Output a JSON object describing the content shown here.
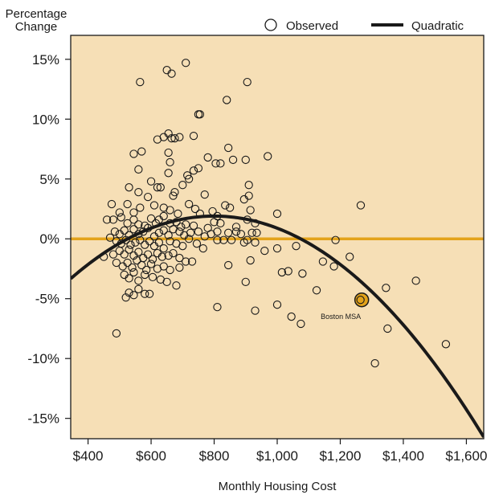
{
  "chart_data": {
    "type": "scatter",
    "title": "",
    "xlabel": "Monthly Housing Cost",
    "ylabel_line1": "Percentage",
    "ylabel_line2": "Change",
    "xlim": [
      345,
      1655
    ],
    "ylim": [
      -16.7,
      17
    ],
    "x_ticks": [
      400,
      600,
      800,
      1000,
      1200,
      1400,
      1600
    ],
    "x_tick_labels": [
      "$400",
      "$600",
      "$800",
      "$1,000",
      "$1,200",
      "$1,400",
      "$1,600"
    ],
    "y_ticks": [
      15,
      10,
      5,
      0,
      -5,
      -10,
      -15
    ],
    "y_tick_labels": [
      "15%",
      "10%",
      "5%",
      "0%",
      "-5%",
      "-10%",
      "-15%"
    ],
    "grid": false,
    "legend_position": "top-right",
    "legend": [
      {
        "label": "Observed",
        "symbol": "open-circle"
      },
      {
        "label": "Quadratic",
        "symbol": "thick-line"
      }
    ],
    "colors": {
      "plot_background": "#f6dfb6",
      "zero_line": "#e3a31b",
      "fit_line": "#1a1a1a",
      "highlight": "#e3a31b"
    },
    "zero_line_y": 0,
    "quadratic_fit": {
      "vertex_x": 800,
      "vertex_y": 1.9,
      "a": -2.525e-05
    },
    "annotation": {
      "text": "Boston MSA",
      "x": 1268,
      "y": -5.1
    },
    "highlight_point": {
      "x": 1268,
      "y": -5.1
    },
    "series": [
      {
        "name": "Observed",
        "points": [
          [
            565,
            13.1
          ],
          [
            650,
            14.1
          ],
          [
            665,
            13.8
          ],
          [
            710,
            14.7
          ],
          [
            905,
            13.1
          ],
          [
            840,
            11.6
          ],
          [
            755,
            10.4
          ],
          [
            750,
            10.4
          ],
          [
            655,
            8.8
          ],
          [
            665,
            8.4
          ],
          [
            675,
            8.4
          ],
          [
            690,
            8.5
          ],
          [
            620,
            8.3
          ],
          [
            640,
            8.5
          ],
          [
            735,
            8.6
          ],
          [
            545,
            7.1
          ],
          [
            570,
            7.3
          ],
          [
            655,
            7.2
          ],
          [
            845,
            7.6
          ],
          [
            780,
            6.8
          ],
          [
            860,
            6.6
          ],
          [
            900,
            6.6
          ],
          [
            970,
            6.9
          ],
          [
            660,
            6.4
          ],
          [
            805,
            6.3
          ],
          [
            820,
            6.3
          ],
          [
            560,
            5.8
          ],
          [
            655,
            5.5
          ],
          [
            715,
            5.3
          ],
          [
            735,
            5.7
          ],
          [
            750,
            5.9
          ],
          [
            720,
            5.0
          ],
          [
            530,
            4.3
          ],
          [
            600,
            4.8
          ],
          [
            620,
            4.3
          ],
          [
            630,
            4.3
          ],
          [
            675,
            3.9
          ],
          [
            700,
            4.5
          ],
          [
            910,
            4.5
          ],
          [
            560,
            3.9
          ],
          [
            590,
            3.5
          ],
          [
            670,
            3.6
          ],
          [
            770,
            3.7
          ],
          [
            850,
            2.6
          ],
          [
            895,
            3.3
          ],
          [
            910,
            3.6
          ],
          [
            1265,
            2.8
          ],
          [
            475,
            2.9
          ],
          [
            500,
            2.2
          ],
          [
            525,
            2.9
          ],
          [
            545,
            2.2
          ],
          [
            565,
            2.6
          ],
          [
            610,
            2.8
          ],
          [
            640,
            2.6
          ],
          [
            660,
            2.4
          ],
          [
            685,
            2.1
          ],
          [
            720,
            2.9
          ],
          [
            740,
            2.5
          ],
          [
            755,
            2.1
          ],
          [
            795,
            2.3
          ],
          [
            810,
            1.9
          ],
          [
            835,
            2.8
          ],
          [
            915,
            2.4
          ],
          [
            1000,
            2.1
          ],
          [
            460,
            1.6
          ],
          [
            480,
            1.6
          ],
          [
            505,
            1.8
          ],
          [
            525,
            1.3
          ],
          [
            545,
            1.6
          ],
          [
            560,
            1.2
          ],
          [
            580,
            1.1
          ],
          [
            600,
            1.7
          ],
          [
            615,
            1.3
          ],
          [
            625,
            1.6
          ],
          [
            640,
            1.9
          ],
          [
            660,
            1.3
          ],
          [
            680,
            1.4
          ],
          [
            695,
            1.0
          ],
          [
            710,
            1.2
          ],
          [
            735,
            1.1
          ],
          [
            780,
            0.9
          ],
          [
            800,
            1.4
          ],
          [
            820,
            1.3
          ],
          [
            870,
            1.0
          ],
          [
            905,
            1.6
          ],
          [
            930,
            1.3
          ],
          [
            485,
            0.6
          ],
          [
            500,
            0.4
          ],
          [
            515,
            0.7
          ],
          [
            530,
            0.3
          ],
          [
            545,
            0.8
          ],
          [
            560,
            0.4
          ],
          [
            575,
            0.6
          ],
          [
            590,
            0.9
          ],
          [
            610,
            0.2
          ],
          [
            625,
            0.5
          ],
          [
            640,
            0.7
          ],
          [
            655,
            0.3
          ],
          [
            670,
            0.8
          ],
          [
            690,
            0.6
          ],
          [
            705,
            0.3
          ],
          [
            725,
            0.5
          ],
          [
            750,
            0.6
          ],
          [
            770,
            0.2
          ],
          [
            790,
            0.4
          ],
          [
            810,
            0.6
          ],
          [
            845,
            0.5
          ],
          [
            870,
            0.6
          ],
          [
            885,
            0.4
          ],
          [
            920,
            0.5
          ],
          [
            935,
            0.5
          ],
          [
            470,
            0.1
          ],
          [
            490,
            -0.2
          ],
          [
            505,
            -0.4
          ],
          [
            520,
            -0.1
          ],
          [
            535,
            -0.5
          ],
          [
            550,
            -0.3
          ],
          [
            565,
            -0.1
          ],
          [
            580,
            -0.5
          ],
          [
            595,
            -0.2
          ],
          [
            610,
            -0.6
          ],
          [
            625,
            -0.3
          ],
          [
            640,
            -0.8
          ],
          [
            660,
            -0.2
          ],
          [
            680,
            -0.4
          ],
          [
            700,
            -0.6
          ],
          [
            720,
            0.0
          ],
          [
            745,
            -0.4
          ],
          [
            765,
            -0.8
          ],
          [
            810,
            -0.1
          ],
          [
            830,
            -0.1
          ],
          [
            855,
            -0.1
          ],
          [
            895,
            -0.3
          ],
          [
            905,
            -0.1
          ],
          [
            930,
            -0.3
          ],
          [
            960,
            -1.0
          ],
          [
            1000,
            -0.8
          ],
          [
            1060,
            -0.6
          ],
          [
            1185,
            -0.1
          ],
          [
            450,
            -1.5
          ],
          [
            480,
            -1.3
          ],
          [
            500,
            -1.0
          ],
          [
            515,
            -1.3
          ],
          [
            530,
            -0.9
          ],
          [
            545,
            -1.4
          ],
          [
            560,
            -1.1
          ],
          [
            575,
            -1.6
          ],
          [
            590,
            -1.3
          ],
          [
            605,
            -1.7
          ],
          [
            620,
            -1.2
          ],
          [
            635,
            -1.5
          ],
          [
            655,
            -1.4
          ],
          [
            670,
            -1.2
          ],
          [
            690,
            -1.6
          ],
          [
            710,
            -1.9
          ],
          [
            490,
            -2.0
          ],
          [
            510,
            -2.3
          ],
          [
            525,
            -2.0
          ],
          [
            540,
            -2.4
          ],
          [
            555,
            -1.8
          ],
          [
            570,
            -2.2
          ],
          [
            585,
            -2.6
          ],
          [
            600,
            -2.1
          ],
          [
            620,
            -2.5
          ],
          [
            640,
            -2.3
          ],
          [
            660,
            -2.6
          ],
          [
            690,
            -2.4
          ],
          [
            730,
            -1.9
          ],
          [
            845,
            -2.2
          ],
          [
            915,
            -1.8
          ],
          [
            1145,
            -1.9
          ],
          [
            1180,
            -2.3
          ],
          [
            1230,
            -1.5
          ],
          [
            515,
            -3.0
          ],
          [
            530,
            -3.3
          ],
          [
            545,
            -2.8
          ],
          [
            560,
            -3.5
          ],
          [
            580,
            -3.0
          ],
          [
            605,
            -3.2
          ],
          [
            630,
            -3.4
          ],
          [
            650,
            -3.6
          ],
          [
            680,
            -3.9
          ],
          [
            900,
            -3.6
          ],
          [
            1015,
            -2.8
          ],
          [
            1035,
            -2.7
          ],
          [
            1080,
            -2.9
          ],
          [
            1345,
            -4.1
          ],
          [
            1440,
            -3.5
          ],
          [
            530,
            -4.5
          ],
          [
            545,
            -4.7
          ],
          [
            560,
            -4.2
          ],
          [
            580,
            -4.6
          ],
          [
            520,
            -4.9
          ],
          [
            595,
            -4.6
          ],
          [
            810,
            -5.7
          ],
          [
            930,
            -6.0
          ],
          [
            1000,
            -5.5
          ],
          [
            1045,
            -6.5
          ],
          [
            1075,
            -7.1
          ],
          [
            1125,
            -4.3
          ],
          [
            1265,
            -5.2
          ],
          [
            1350,
            -7.5
          ],
          [
            490,
            -7.9
          ],
          [
            1310,
            -10.4
          ],
          [
            1535,
            -8.8
          ]
        ]
      }
    ]
  }
}
